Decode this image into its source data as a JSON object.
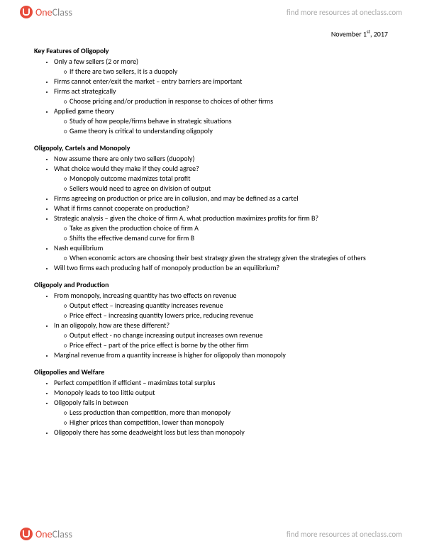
{
  "brand": {
    "part1": "One",
    "part2": "Class"
  },
  "header_link": "find more resources at oneclass.com",
  "footer_link": "find more resources at oneclass.com",
  "date_prefix": "November 1",
  "date_suffix": "st",
  "date_year": ", 2017",
  "sections": [
    {
      "title": "Key Features of Oligopoly",
      "items": [
        {
          "t": "Only a few sellers (2 or more)",
          "sub": [
            {
              "t": "If there are two sellers, it is a duopoly"
            }
          ]
        },
        {
          "t": "Firms cannot enter/exit the market – entry barriers are important"
        },
        {
          "t": "Firms act strategically",
          "sub": [
            {
              "t": "Choose pricing and/or production in response to choices of other firms"
            }
          ]
        },
        {
          "t": "Applied game theory",
          "sub": [
            {
              "t": "Study of how people/firms behave in strategic situations"
            },
            {
              "t": "Game theory is critical to understanding oligopoly"
            }
          ]
        }
      ]
    },
    {
      "title": "Oligopoly, Cartels and Monopoly",
      "items": [
        {
          "t": "Now assume there are only two sellers (duopoly)"
        },
        {
          "t": "What choice would they make if they could agree?",
          "sub": [
            {
              "t": "Monopoly outcome maximizes total profit"
            },
            {
              "t": "Sellers would need to agree on division of output"
            }
          ]
        },
        {
          "t": "Firms agreeing on production or price are in collusion, and may be defined as a cartel"
        },
        {
          "t": "What if firms cannot cooperate on production?"
        },
        {
          "t": "Strategic analysis – given the choice of firm A, what production maximizes profits for firm B?",
          "sub": [
            {
              "t": "Take as given the production choice of firm A"
            },
            {
              "t": "Shifts the effective demand curve for firm B"
            }
          ]
        },
        {
          "t": "Nash equilibrium",
          "sub": [
            {
              "t": "When economic actors are choosing their best strategy given the strategy given the strategies of others"
            }
          ]
        },
        {
          "t": "Will two firms each producing half of monopoly production be an equilibrium?"
        }
      ]
    },
    {
      "title": "Oligopoly and Production",
      "items": [
        {
          "t": "From monopoly, increasing quantity has two effects on revenue",
          "sub": [
            {
              "t": "Output effect – increasing quantity increases revenue"
            },
            {
              "t": "Price effect – increasing quantity lowers price, reducing revenue"
            }
          ]
        },
        {
          "t": "In an oligopoly, how are these different?",
          "sub": [
            {
              "t": "Output effect - no change increasing output increases own revenue"
            },
            {
              "t": "Price effect – part of the price effect is borne by the other firm"
            }
          ]
        },
        {
          "t": "Marginal revenue from a quantity increase is higher for oligopoly than monopoly"
        }
      ]
    },
    {
      "title": "Oligopolies and Welfare",
      "items": [
        {
          "t": "Perfect competition if efficient – maximizes total surplus"
        },
        {
          "t": "Monopoly leads to too little output"
        },
        {
          "t": "Oligopoly falls in between",
          "sub": [
            {
              "t": "Less production than competition, more than monopoly"
            },
            {
              "t": "Higher prices than competition, lower than monopoly"
            }
          ]
        },
        {
          "t": "Oligopoly there has some deadweight loss but less than monopoly"
        }
      ]
    }
  ]
}
